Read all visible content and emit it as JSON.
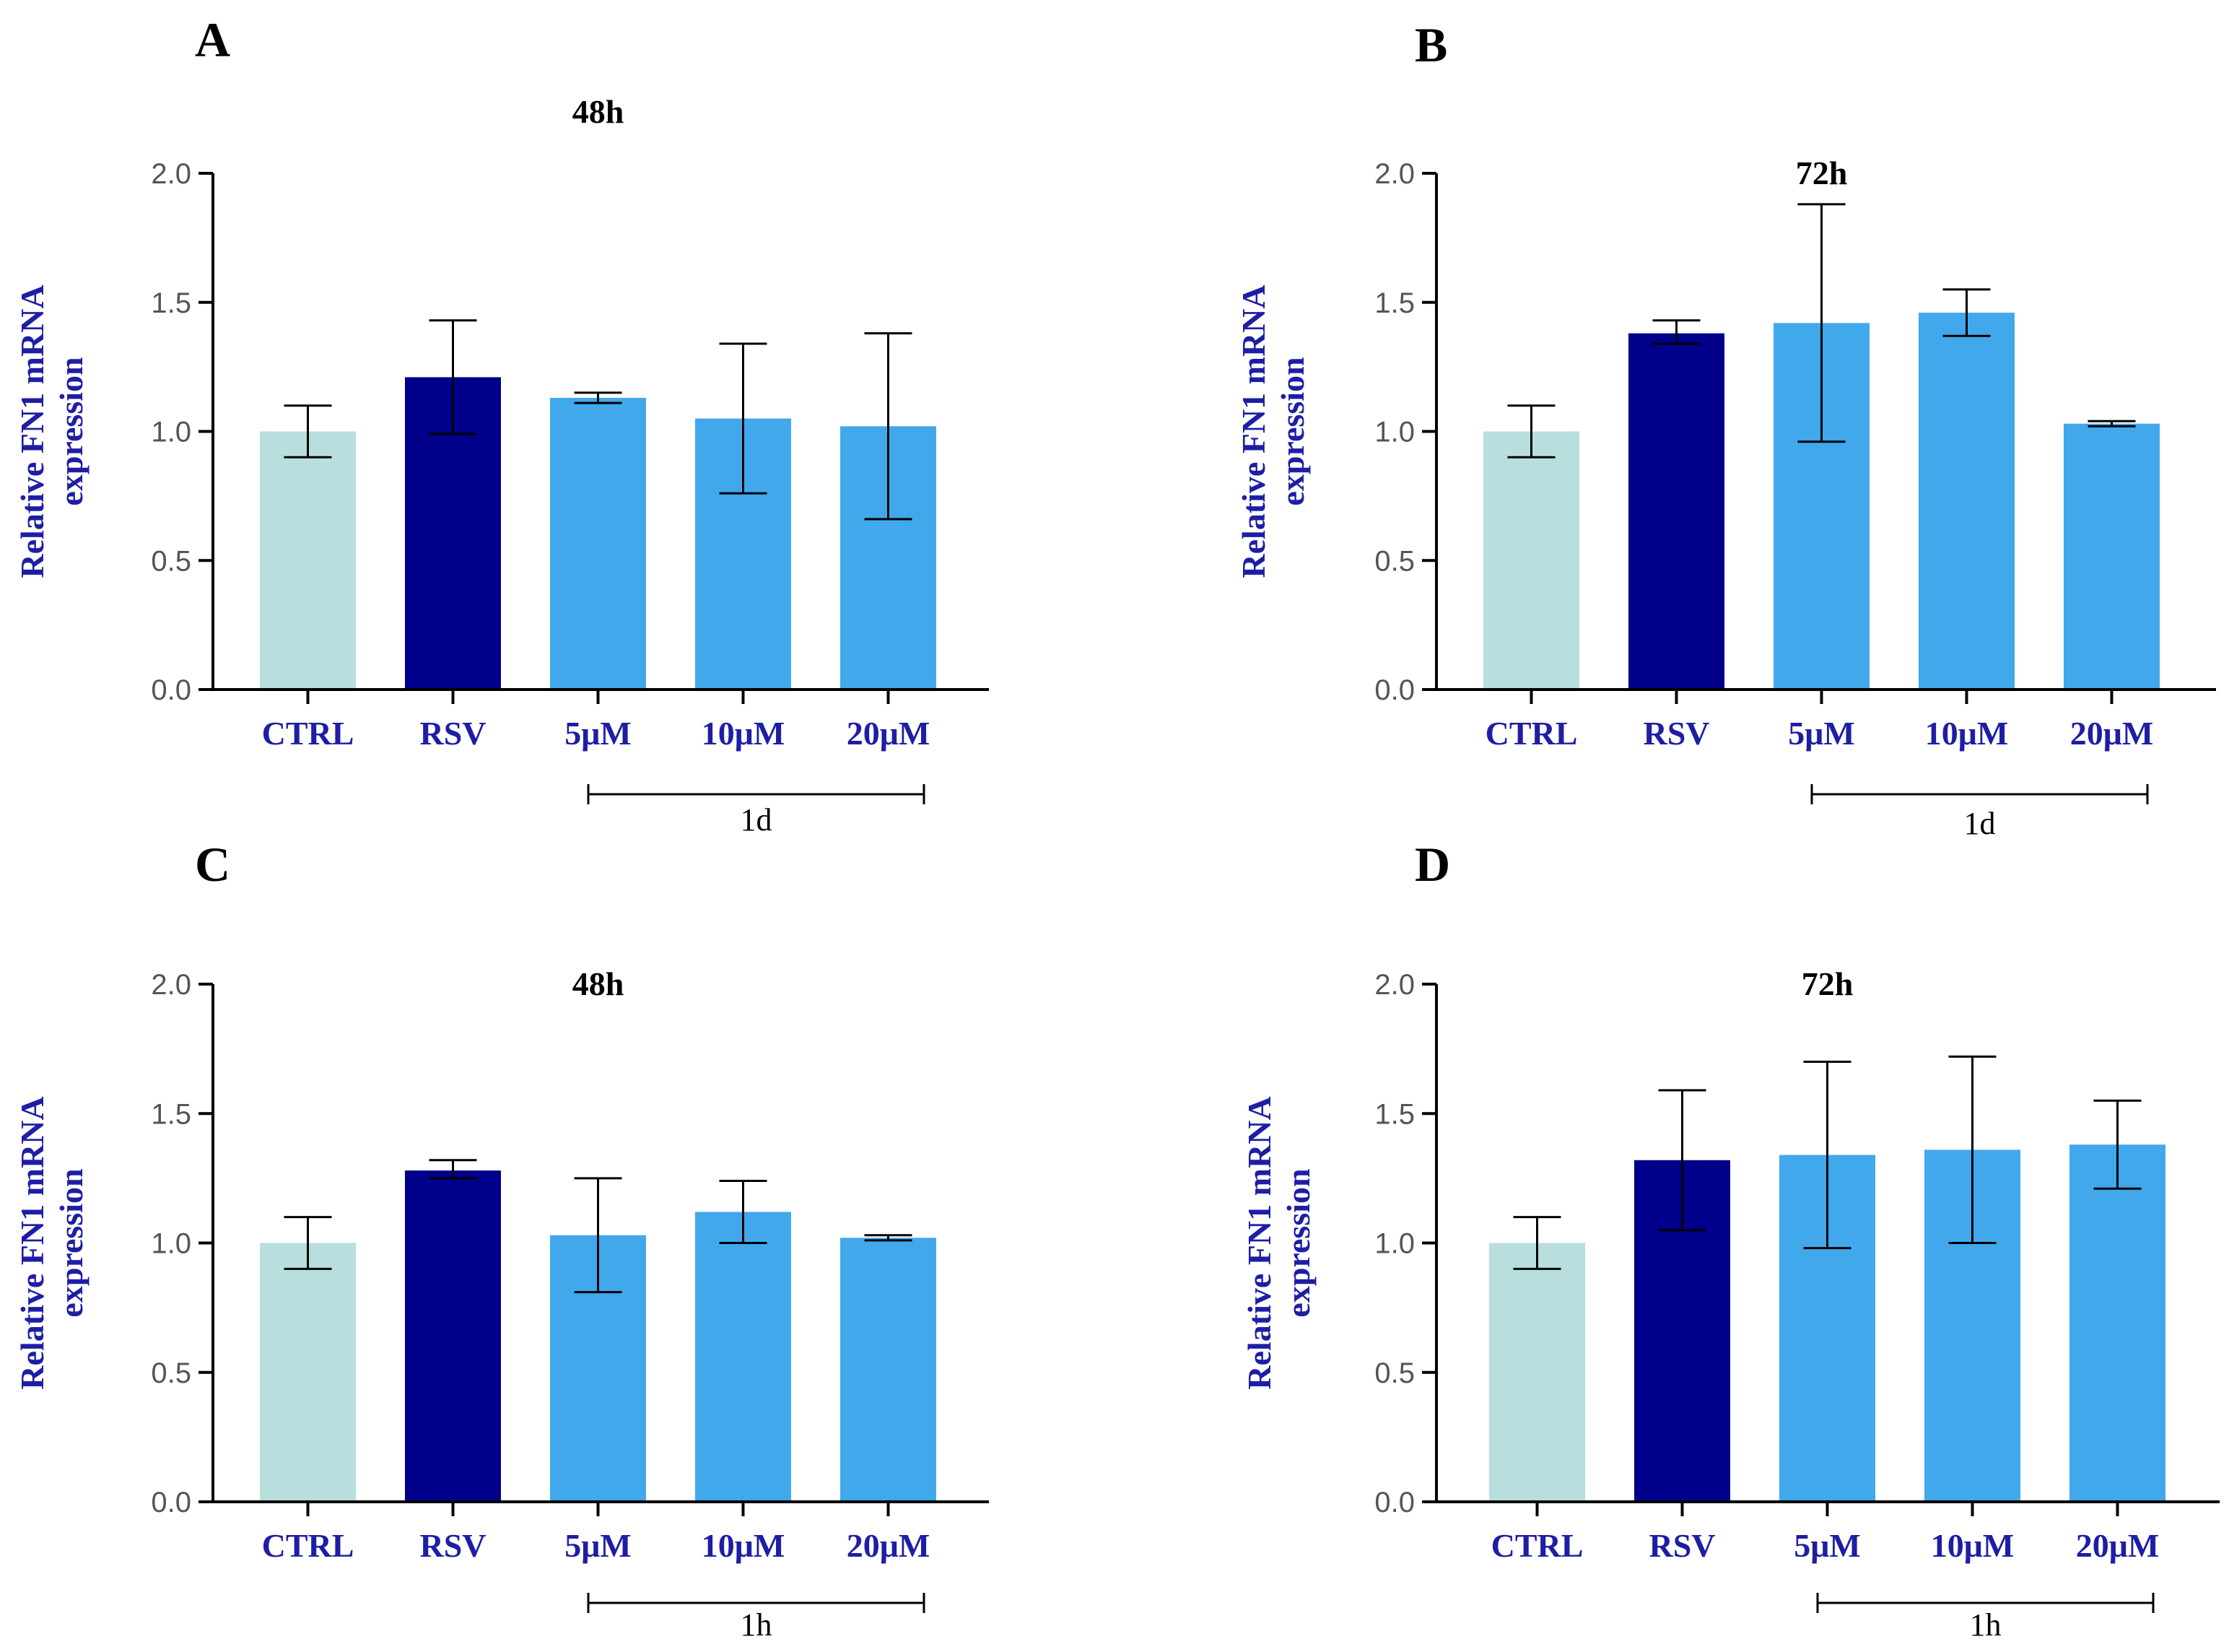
{
  "colors": {
    "ctrl": "#B9DEDE",
    "rsv": "#00008B",
    "treat": "#42A8EC",
    "label": "#1E1EA5",
    "axis": "#000000"
  },
  "chart_data": [
    {
      "type": "bar",
      "panel": "A",
      "title": "48h",
      "ylabel_line1": "Relative FN1 mRNA",
      "ylabel_line2": "expression",
      "categories": [
        "CTRL",
        "RSV",
        "5μM",
        "10μM",
        "20μM"
      ],
      "values": [
        1.0,
        1.21,
        1.13,
        1.05,
        1.02
      ],
      "error_low": [
        0.9,
        0.99,
        1.11,
        0.76,
        0.66
      ],
      "error_high": [
        1.1,
        1.43,
        1.15,
        1.34,
        1.38
      ],
      "ylim": [
        0,
        2.0
      ],
      "yticks": [
        "0.0",
        "0.5",
        "1.0",
        "1.5",
        "2.0"
      ],
      "group_label": "1d"
    },
    {
      "type": "bar",
      "panel": "B",
      "title": "72h",
      "ylabel_line1": "Relative FN1 mRNA",
      "ylabel_line2": "expression",
      "categories": [
        "CTRL",
        "RSV",
        "5μM",
        "10μM",
        "20μM"
      ],
      "values": [
        1.0,
        1.38,
        1.42,
        1.46,
        1.03
      ],
      "error_low": [
        0.9,
        1.34,
        0.96,
        1.37,
        1.02
      ],
      "error_high": [
        1.1,
        1.43,
        1.88,
        1.55,
        1.04
      ],
      "ylim": [
        0,
        2.0
      ],
      "yticks": [
        "0.0",
        "0.5",
        "1.0",
        "1.5",
        "2.0"
      ],
      "group_label": "1d"
    },
    {
      "type": "bar",
      "panel": "C",
      "title": "48h",
      "ylabel_line1": "Relative FN1 mRNA",
      "ylabel_line2": "expression",
      "categories": [
        "CTRL",
        "RSV",
        "5μM",
        "10μM",
        "20μM"
      ],
      "values": [
        1.0,
        1.28,
        1.03,
        1.12,
        1.02
      ],
      "error_low": [
        0.9,
        1.25,
        0.81,
        1.0,
        1.01
      ],
      "error_high": [
        1.1,
        1.32,
        1.25,
        1.24,
        1.03
      ],
      "ylim": [
        0,
        2.0
      ],
      "yticks": [
        "0.0",
        "0.5",
        "1.0",
        "1.5",
        "2.0"
      ],
      "group_label": "1h"
    },
    {
      "type": "bar",
      "panel": "D",
      "title": "72h",
      "ylabel_line1": "Relative FN1 mRNA",
      "ylabel_line2": "expression",
      "categories": [
        "CTRL",
        "RSV",
        "5μM",
        "10μM",
        "20μM"
      ],
      "values": [
        1.0,
        1.32,
        1.34,
        1.36,
        1.38
      ],
      "error_low": [
        0.9,
        1.05,
        0.98,
        1.0,
        1.21
      ],
      "error_high": [
        1.1,
        1.59,
        1.7,
        1.72,
        1.55
      ],
      "ylim": [
        0,
        2.0
      ],
      "yticks": [
        "0.0",
        "0.5",
        "1.0",
        "1.5",
        "2.0"
      ],
      "group_label": "1h"
    }
  ]
}
